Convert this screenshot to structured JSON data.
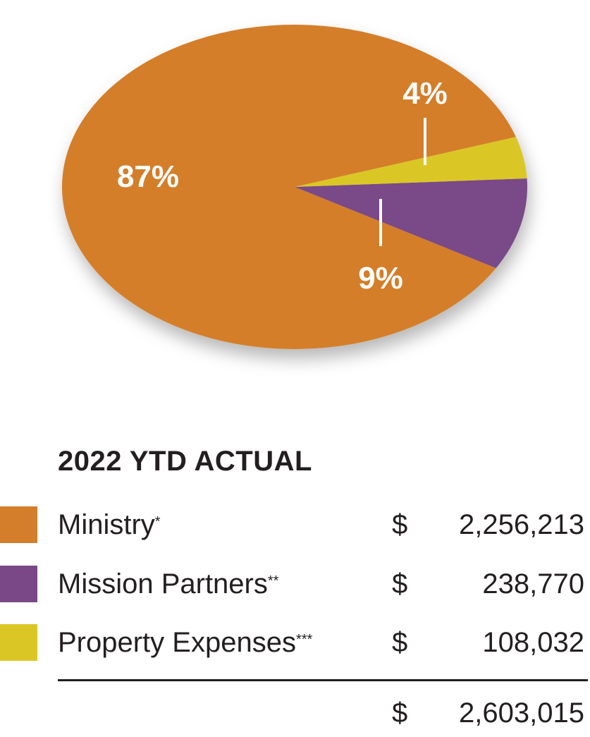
{
  "chart_data": {
    "type": "pie",
    "title": "2022 YTD ACTUAL",
    "slices": [
      {
        "name": "Ministry",
        "marker": "*",
        "value": 2256213,
        "display_amount": "2,256,213",
        "percent_label": "87%",
        "color": "#d47e2b"
      },
      {
        "name": "Mission Partners",
        "marker": "**",
        "value": 238770,
        "display_amount": "238,770",
        "percent_label": "9%",
        "color": "#7a4887"
      },
      {
        "name": "Property Expenses",
        "marker": "***",
        "value": 108032,
        "display_amount": "108,032",
        "percent_label": "4%",
        "color": "#dac725"
      }
    ],
    "total": {
      "value": 2603015,
      "display_amount": "2,603,015"
    },
    "currency_symbol": "$"
  }
}
